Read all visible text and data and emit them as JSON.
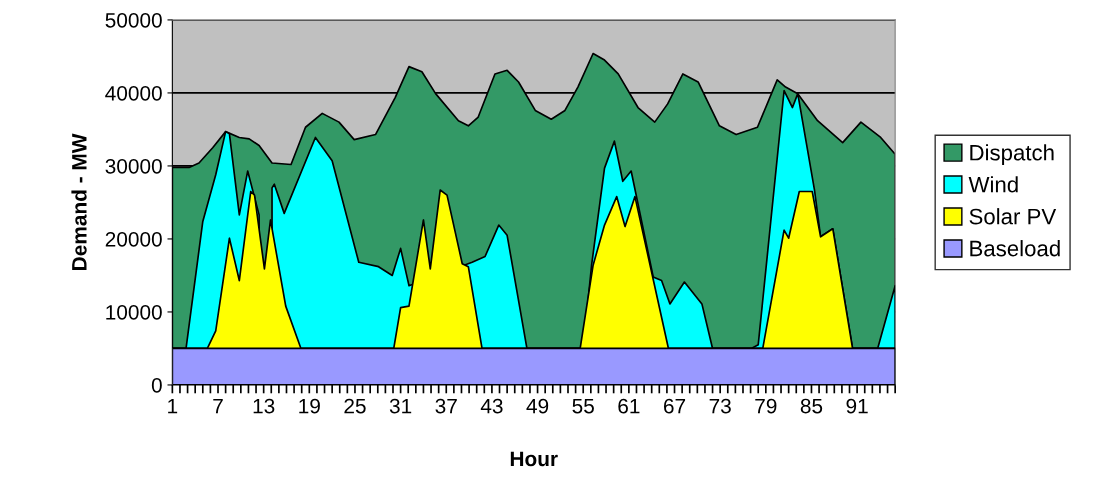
{
  "chart_data": {
    "type": "area",
    "xlabel": "Hour",
    "ylabel": "Demand - MW",
    "series": [
      {
        "name": "Dispatch",
        "color": "#339966",
        "x": [
          1,
          3.2,
          4.5,
          6.3,
          8,
          9.8,
          11.1,
          12.4,
          14.1,
          16.6,
          18.5,
          20.7,
          22.9,
          24.9,
          27.7,
          30.3,
          32.1,
          33.8,
          35.6,
          38.6,
          39.9,
          41.2,
          43.4,
          45,
          46.5,
          48.7,
          50.8,
          52.6,
          54.3,
          56.3,
          57.8,
          59.6,
          62.2,
          64.4,
          66.1,
          68.1,
          70.1,
          72.9,
          75.1,
          77.9,
          80.1,
          80.5,
          81.6,
          83.2,
          85.8,
          89.1,
          91.5,
          94.1,
          96
        ],
        "values": [
          29800,
          29800,
          30400,
          32500,
          34700,
          33900,
          33700,
          32800,
          30400,
          30200,
          35300,
          37200,
          36000,
          33600,
          34300,
          39400,
          43600,
          42900,
          39900,
          36200,
          35500,
          36700,
          42600,
          43100,
          41500,
          37600,
          36400,
          37600,
          40800,
          45400,
          44500,
          42600,
          38000,
          36000,
          38500,
          42600,
          41500,
          35500,
          34300,
          35300,
          40800,
          41800,
          40800,
          39900,
          36200,
          33200,
          36000,
          33900,
          31600
        ]
      },
      {
        "name": "Wind",
        "color": "#00ffff",
        "x": [
          1,
          2.8,
          5,
          6.7,
          8,
          8.5,
          9.8,
          10.9,
          12.4,
          13.1,
          14.1,
          14.4,
          15.7,
          19.8,
          22,
          25.5,
          28.1,
          29.9,
          31,
          32.1,
          40.4,
          42.1,
          43.9,
          45,
          47.6,
          55,
          56.1,
          57.8,
          59.1,
          60.2,
          61.3,
          64.2,
          65.3,
          66.4,
          68.3,
          70.6,
          72,
          77.1,
          78,
          81.4,
          82.5,
          83.2,
          85.4,
          86.2,
          87.8,
          90.4,
          93.7,
          96
        ],
        "values": [
          5000,
          5000,
          22400,
          28800,
          34700,
          34400,
          23300,
          29300,
          23300,
          null,
          27000,
          27500,
          23500,
          33900,
          30700,
          16800,
          16200,
          15000,
          18700,
          13600,
          16800,
          17600,
          21900,
          20500,
          5000,
          5000,
          16400,
          29700,
          33400,
          27900,
          29300,
          14800,
          14300,
          11100,
          14100,
          11100,
          5000,
          5000,
          5500,
          40300,
          38000,
          39900,
          26700,
          20300,
          21400,
          5000,
          5000,
          13600
        ]
      },
      {
        "name": "Solar PV",
        "color": "#ffff00",
        "x": [
          1,
          5.6,
          6.7,
          8.5,
          9.8,
          11.3,
          11.8,
          13.1,
          13.9,
          15.9,
          17.9,
          30.1,
          31,
          32.1,
          34,
          34.9,
          36.2,
          37.1,
          39.1,
          39.9,
          41.7,
          54.6,
          56.3,
          57.8,
          59.4,
          60.5,
          61.8,
          64,
          66.2,
          78.6,
          81.4,
          82,
          83.4,
          85.1,
          86.2,
          87.8,
          90.4,
          96
        ],
        "values": [
          5000,
          5000,
          7400,
          20100,
          14300,
          26500,
          26000,
          15900,
          22600,
          10800,
          5000,
          5000,
          10600,
          10800,
          22600,
          15900,
          26700,
          26000,
          16600,
          16200,
          5000,
          5000,
          16400,
          21900,
          25800,
          21700,
          25800,
          15400,
          5000,
          5000,
          21200,
          20100,
          26500,
          26500,
          20300,
          21400,
          5000,
          5000
        ]
      },
      {
        "name": "Baseload",
        "color": "#9999ff",
        "x": [
          1,
          96
        ],
        "values": [
          5000,
          5000
        ]
      }
    ],
    "xlim": [
      1,
      96
    ],
    "xticks": [
      1,
      {
        "value": 2,
        "label": null
      },
      {
        "value": 3,
        "label": null
      },
      {
        "value": 4,
        "label": null
      },
      {
        "value": 5,
        "label": null
      },
      {
        "value": 6,
        "label": null
      },
      7,
      {
        "value": 8,
        "label": null
      },
      {
        "value": 9,
        "label": null
      },
      {
        "value": 10,
        "label": null
      },
      {
        "value": 11,
        "label": null
      },
      {
        "value": 12,
        "label": null
      },
      13,
      {
        "value": 14,
        "label": null
      },
      {
        "value": 15,
        "label": null
      },
      {
        "value": 16,
        "label": null
      },
      {
        "value": 17,
        "label": null
      },
      {
        "value": 18,
        "label": null
      },
      19,
      {
        "value": 20,
        "label": null
      },
      {
        "value": 21,
        "label": null
      },
      {
        "value": 22,
        "label": null
      },
      {
        "value": 23,
        "label": null
      },
      {
        "value": 24,
        "label": null
      },
      25,
      {
        "value": 26,
        "label": null
      },
      {
        "value": 27,
        "label": null
      },
      {
        "value": 28,
        "label": null
      },
      {
        "value": 29,
        "label": null
      },
      {
        "value": 30,
        "label": null
      },
      31,
      {
        "value": 32,
        "label": null
      },
      {
        "value": 33,
        "label": null
      },
      {
        "value": 34,
        "label": null
      },
      {
        "value": 35,
        "label": null
      },
      {
        "value": 36,
        "label": null
      },
      37,
      {
        "value": 38,
        "label": null
      },
      {
        "value": 39,
        "label": null
      },
      {
        "value": 40,
        "label": null
      },
      {
        "value": 41,
        "label": null
      },
      {
        "value": 42,
        "label": null
      },
      43,
      {
        "value": 44,
        "label": null
      },
      {
        "value": 45,
        "label": null
      },
      {
        "value": 46,
        "label": null
      },
      {
        "value": 47,
        "label": null
      },
      {
        "value": 48,
        "label": null
      },
      49,
      {
        "value": 50,
        "label": null
      },
      {
        "value": 51,
        "label": null
      },
      {
        "value": 52,
        "label": null
      },
      {
        "value": 53,
        "label": null
      },
      {
        "value": 54,
        "label": null
      },
      55,
      {
        "value": 56,
        "label": null
      },
      {
        "value": 57,
        "label": null
      },
      {
        "value": 58,
        "label": null
      },
      {
        "value": 59,
        "label": null
      },
      {
        "value": 60,
        "label": null
      },
      61,
      {
        "value": 62,
        "label": null
      },
      {
        "value": 63,
        "label": null
      },
      {
        "value": 64,
        "label": null
      },
      {
        "value": 65,
        "label": null
      },
      {
        "value": 66,
        "label": null
      },
      67,
      {
        "value": 68,
        "label": null
      },
      {
        "value": 69,
        "label": null
      },
      {
        "value": 70,
        "label": null
      },
      {
        "value": 71,
        "label": null
      },
      {
        "value": 72,
        "label": null
      },
      73,
      {
        "value": 74,
        "label": null
      },
      {
        "value": 75,
        "label": null
      },
      {
        "value": 76,
        "label": null
      },
      {
        "value": 77,
        "label": null
      },
      {
        "value": 78,
        "label": null
      },
      79,
      {
        "value": 80,
        "label": null
      },
      {
        "value": 81,
        "label": null
      },
      {
        "value": 82,
        "label": null
      },
      {
        "value": 83,
        "label": null
      },
      {
        "value": 84,
        "label": null
      },
      85,
      {
        "value": 86,
        "label": null
      },
      {
        "value": 87,
        "label": null
      },
      {
        "value": 88,
        "label": null
      },
      {
        "value": 89,
        "label": null
      },
      {
        "value": 90,
        "label": null
      },
      91,
      {
        "value": 92,
        "label": null
      },
      {
        "value": 93,
        "label": null
      },
      {
        "value": 94,
        "label": null
      },
      {
        "value": 95,
        "label": null
      },
      {
        "value": 96,
        "label": null
      }
    ],
    "ylim": [
      0,
      50000
    ],
    "yticks": [
      0,
      10000,
      20000,
      30000,
      40000,
      50000
    ],
    "grid": "y",
    "legend": "right"
  }
}
